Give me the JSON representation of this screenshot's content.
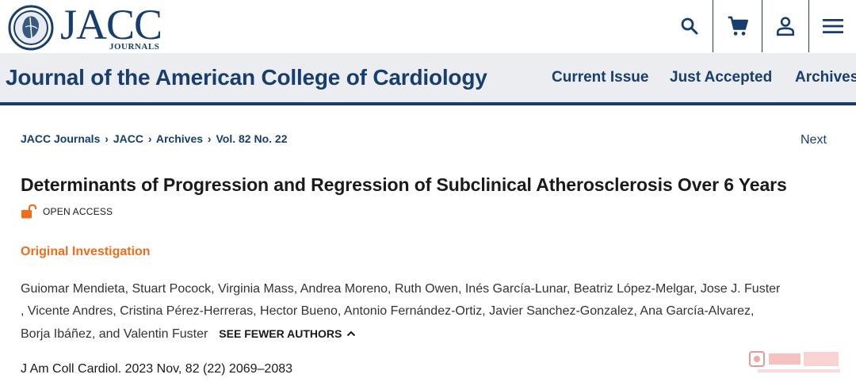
{
  "brand": {
    "logo_word": "JACC",
    "logo_sub": "JOURNALS",
    "journal_title": "Journal of the American College of Cardiology",
    "color_primary": "#173e6d",
    "color_accent": "#ef6c1a"
  },
  "header_icons": [
    "search-icon",
    "cart-icon",
    "user-icon",
    "menu-icon"
  ],
  "nav": {
    "current_issue": "Current Issue",
    "just_accepted": "Just Accepted",
    "archives": "Archives"
  },
  "breadcrumb": {
    "items": [
      "JACC Journals",
      "JACC",
      "Archives",
      "Vol. 82 No. 22"
    ],
    "separator": "›"
  },
  "pager": {
    "next": "Next"
  },
  "article": {
    "title": "Determinants of Progression and Regression of Subclinical Atherosclerosis Over 6 Years",
    "access_label": "OPEN ACCESS",
    "type": "Original Investigation",
    "author_lines": [
      "Guiomar Mendieta, Stuart Pocock, Virginia Mass, Andrea Moreno, Ruth Owen, Inés García-Lunar, Beatriz López-Melgar, Jose J. Fuster",
      ", Vicente Andres, Cristina Pérez-Herreras, Hector Bueno, Antonio Fernández-Ortiz, Javier Sanchez-Gonzalez, Ana García-Alvarez,",
      "Borja Ibáñez, and Valentin Fuster"
    ],
    "see_fewer_label": "SEE FEWER AUTHORS",
    "citation": "J Am Coll Cardiol. 2023 Nov, 82 (22) 2069–2083"
  }
}
